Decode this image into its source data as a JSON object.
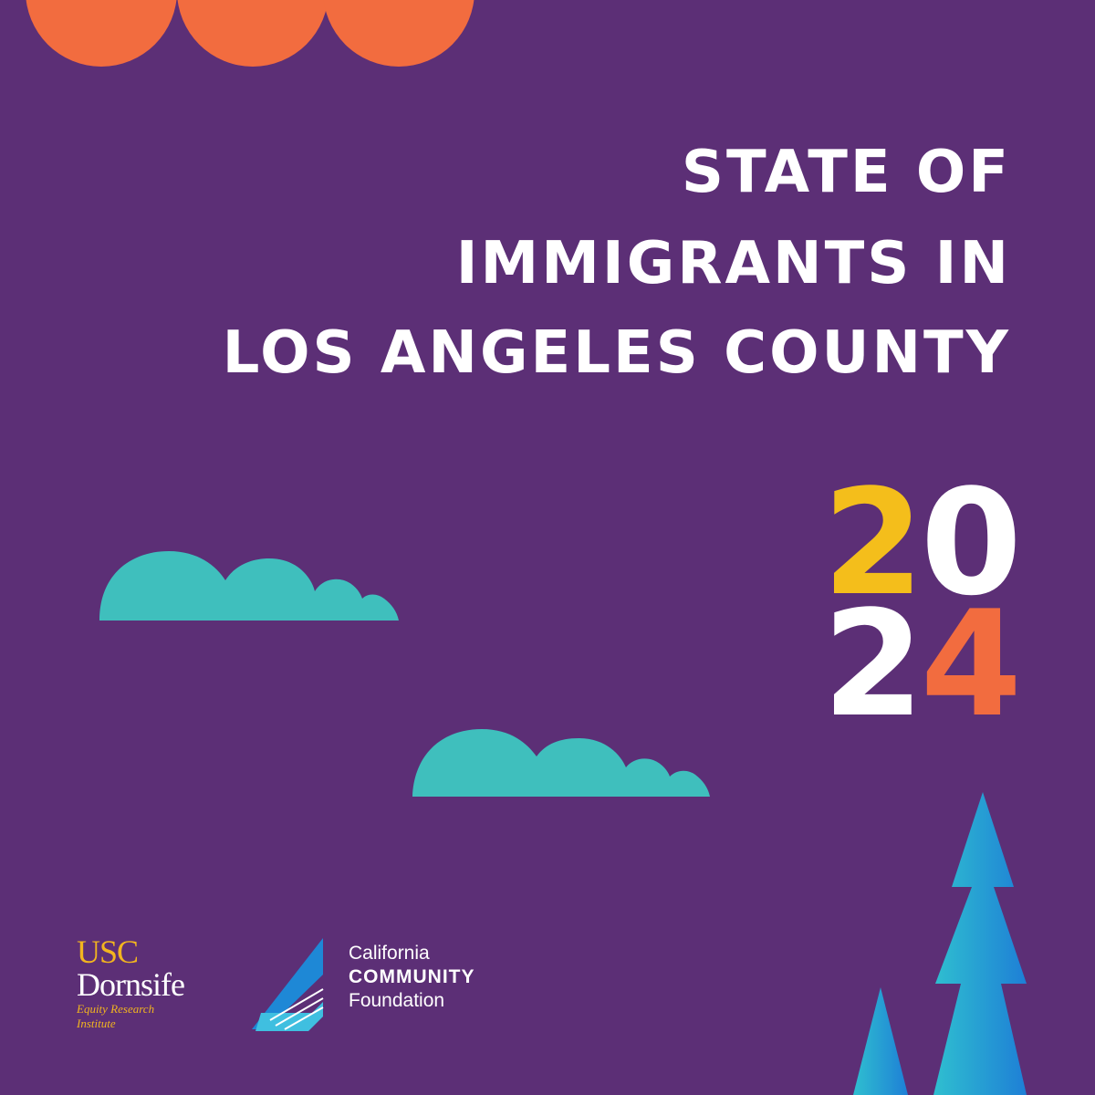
{
  "title": {
    "line1": "STATE OF",
    "line2": "IMMIGRANTS IN",
    "line3": "LOS ANGELES COUNTY"
  },
  "year": {
    "digit1": "2",
    "digit2": "0",
    "digit3": "2",
    "digit4": "4"
  },
  "logos": {
    "usc": {
      "line1": "USC",
      "line2": "Dornsife",
      "subline1": "Equity Research",
      "subline2": "Institute"
    },
    "ccf": {
      "line1": "California",
      "line2": "COMMUNITY",
      "line3": "Foundation"
    }
  },
  "colors": {
    "background": "#5c2f76",
    "orange": "#f26c3f",
    "yellow": "#f4be1b",
    "teal": "#3fbfbd",
    "blue": "#1e88d6",
    "white": "#ffffff"
  }
}
